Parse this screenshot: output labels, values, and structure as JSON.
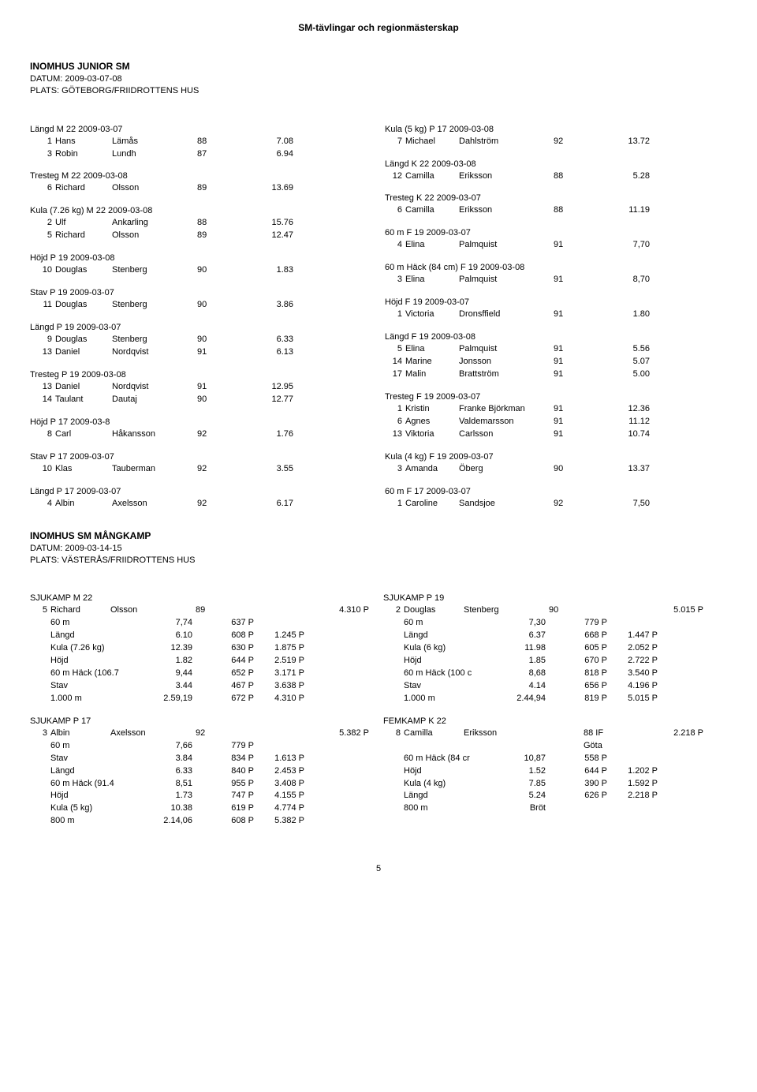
{
  "page_title": "SM-tävlingar och regionmästerskap",
  "section1": {
    "heading": "INOMHUS JUNIOR SM",
    "date_line": "DATUM: 2009-03-07-08",
    "venue_line": "PLATS: GÖTEBORG/FRIIDROTTENS HUS",
    "left": [
      {
        "title": "Längd M 22 2009-03-07",
        "rows": [
          {
            "p": "1",
            "f": "Hans",
            "l": "Lämås",
            "y": "88",
            "m": "7.08"
          },
          {
            "p": "3",
            "f": "Robin",
            "l": "Lundh",
            "y": "87",
            "m": "6.94"
          }
        ]
      },
      {
        "title": "Tresteg M 22 2009-03-08",
        "rows": [
          {
            "p": "6",
            "f": "Richard",
            "l": "Olsson",
            "y": "89",
            "m": "13.69"
          }
        ]
      },
      {
        "title": "Kula (7.26 kg) M 22 2009-03-08",
        "rows": [
          {
            "p": "2",
            "f": "Ulf",
            "l": "Ankarling",
            "y": "88",
            "m": "15.76"
          },
          {
            "p": "5",
            "f": "Richard",
            "l": "Olsson",
            "y": "89",
            "m": "12.47"
          }
        ]
      },
      {
        "title": "Höjd P 19 2009-03-08",
        "rows": [
          {
            "p": "10",
            "f": "Douglas",
            "l": "Stenberg",
            "y": "90",
            "m": "1.83"
          }
        ]
      },
      {
        "title": "Stav P 19 2009-03-07",
        "rows": [
          {
            "p": "11",
            "f": "Douglas",
            "l": "Stenberg",
            "y": "90",
            "m": "3.86"
          }
        ]
      },
      {
        "title": "Längd P 19 2009-03-07",
        "rows": [
          {
            "p": "9",
            "f": "Douglas",
            "l": "Stenberg",
            "y": "90",
            "m": "6.33"
          },
          {
            "p": "13",
            "f": "Daniel",
            "l": "Nordqvist",
            "y": "91",
            "m": "6.13"
          }
        ]
      },
      {
        "title": "Tresteg P 19 2009-03-08",
        "rows": [
          {
            "p": "13",
            "f": "Daniel",
            "l": "Nordqvist",
            "y": "91",
            "m": "12.95"
          },
          {
            "p": "14",
            "f": "Taulant",
            "l": "Dautaj",
            "y": "90",
            "m": "12.77"
          }
        ]
      },
      {
        "title": "Höjd P 17 2009-03-8",
        "rows": [
          {
            "p": "8",
            "f": "Carl",
            "l": "Håkansson",
            "y": "92",
            "m": "1.76"
          }
        ]
      },
      {
        "title": "Stav P 17 2009-03-07",
        "rows": [
          {
            "p": "10",
            "f": "Klas",
            "l": "Tauberman",
            "y": "92",
            "m": "3.55"
          }
        ]
      },
      {
        "title": "Längd P 17 2009-03-07",
        "rows": [
          {
            "p": "4",
            "f": "Albin",
            "l": "Axelsson",
            "y": "92",
            "m": "6.17"
          }
        ]
      }
    ],
    "right": [
      {
        "title": "Kula (5 kg) P 17 2009-03-08",
        "rows": [
          {
            "p": "7",
            "f": "Michael",
            "l": "Dahlström",
            "y": "92",
            "m": "13.72"
          }
        ]
      },
      {
        "title": "Längd K 22 2009-03-08",
        "rows": [
          {
            "p": "12",
            "f": "Camilla",
            "l": "Eriksson",
            "y": "88",
            "m": "5.28"
          }
        ]
      },
      {
        "title": "Tresteg K 22 2009-03-07",
        "rows": [
          {
            "p": "6",
            "f": "Camilla",
            "l": "Eriksson",
            "y": "88",
            "m": "11.19"
          }
        ]
      },
      {
        "title": "60 m F 19 2009-03-07",
        "rows": [
          {
            "p": "4",
            "f": "Elina",
            "l": "Palmquist",
            "y": "91",
            "m": "7,70"
          }
        ]
      },
      {
        "title": "60 m Häck (84 cm) F 19 2009-03-08",
        "rows": [
          {
            "p": "3",
            "f": "Elina",
            "l": "Palmquist",
            "y": "91",
            "m": "8,70"
          }
        ]
      },
      {
        "title": "Höjd F 19 2009-03-07",
        "rows": [
          {
            "p": "1",
            "f": "Victoria",
            "l": "Dronsffield",
            "y": "91",
            "m": "1.80"
          }
        ]
      },
      {
        "title": "Längd F 19 2009-03-08",
        "rows": [
          {
            "p": "5",
            "f": "Elina",
            "l": "Palmquist",
            "y": "91",
            "m": "5.56"
          },
          {
            "p": "14",
            "f": "Marine",
            "l": "Jonsson",
            "y": "91",
            "m": "5.07"
          },
          {
            "p": "17",
            "f": "Malin",
            "l": "Brattström",
            "y": "91",
            "m": "5.00"
          }
        ]
      },
      {
        "title": "Tresteg F 19 2009-03-07",
        "rows": [
          {
            "p": "1",
            "f": "Kristin",
            "l": "Franke Björkman",
            "y": "91",
            "m": "12.36"
          },
          {
            "p": "6",
            "f": "Agnes",
            "l": "Valdemarsson",
            "y": "91",
            "m": "11.12"
          },
          {
            "p": "13",
            "f": "Viktoria",
            "l": "Carlsson",
            "y": "91",
            "m": "10.74"
          }
        ]
      },
      {
        "title": "Kula (4 kg) F 19 2009-03-07",
        "rows": [
          {
            "p": "3",
            "f": "Amanda",
            "l": "Öberg",
            "y": "90",
            "m": "13.37"
          }
        ]
      },
      {
        "title": "60 m F 17 2009-03-07",
        "rows": [
          {
            "p": "1",
            "f": "Caroline",
            "l": "Sandsjoe",
            "y": "92",
            "m": "7,50"
          }
        ]
      }
    ]
  },
  "section2": {
    "heading": "INOMHUS SM MÅNGKAMP",
    "date_line": "DATUM: 2009-03-14-15",
    "venue_line": "PLATS: VÄSTERÅS/FRIIDROTTENS HUS",
    "left": [
      {
        "title": "SJUKAMP M 22",
        "athlete": {
          "p": "5",
          "f": "Richard",
          "l": "Olsson",
          "y": "89",
          "extra": "",
          "total": "4.310 P"
        },
        "rows": [
          {
            "e": "60 m",
            "v": "7,74",
            "pts": "637 P",
            "cum": ""
          },
          {
            "e": "Längd",
            "v": "6.10",
            "pts": "608 P",
            "cum": "1.245 P"
          },
          {
            "e": "Kula (7.26 kg)",
            "v": "12.39",
            "pts": "630 P",
            "cum": "1.875 P"
          },
          {
            "e": "Höjd",
            "v": "1.82",
            "pts": "644 P",
            "cum": "2.519 P"
          },
          {
            "e": "60 m Häck (106.7",
            "v": "9,44",
            "pts": "652 P",
            "cum": "3.171 P"
          },
          {
            "e": "Stav",
            "v": "3.44",
            "pts": "467 P",
            "cum": "3.638 P"
          },
          {
            "e": "1.000 m",
            "v": "2.59,19",
            "pts": "672 P",
            "cum": "4.310 P"
          }
        ]
      },
      {
        "title": "SJUKAMP P 17",
        "athlete": {
          "p": "3",
          "f": "Albin",
          "l": "Axelsson",
          "y": "92",
          "extra": "",
          "total": "5.382 P"
        },
        "rows": [
          {
            "e": "60 m",
            "v": "7,66",
            "pts": "779 P",
            "cum": ""
          },
          {
            "e": "Stav",
            "v": "3.84",
            "pts": "834 P",
            "cum": "1.613 P"
          },
          {
            "e": "Längd",
            "v": "6.33",
            "pts": "840 P",
            "cum": "2.453 P"
          },
          {
            "e": "60 m Häck (91.4",
            "v": "8,51",
            "pts": "955 P",
            "cum": "3.408 P"
          },
          {
            "e": "Höjd",
            "v": "1.73",
            "pts": "747 P",
            "cum": "4.155 P"
          },
          {
            "e": "Kula (5 kg)",
            "v": "10.38",
            "pts": "619 P",
            "cum": "4.774 P"
          },
          {
            "e": "800 m",
            "v": "2.14,06",
            "pts": "608 P",
            "cum": "5.382 P"
          }
        ]
      }
    ],
    "right": [
      {
        "title": "SJUKAMP P 19",
        "athlete": {
          "p": "2",
          "f": "Douglas",
          "l": "Stenberg",
          "y": "90",
          "extra": "",
          "total": "5.015 P"
        },
        "rows": [
          {
            "e": "60 m",
            "v": "7,30",
            "pts": "779 P",
            "cum": ""
          },
          {
            "e": "Längd",
            "v": "6.37",
            "pts": "668 P",
            "cum": "1.447 P"
          },
          {
            "e": "Kula (6 kg)",
            "v": "11.98",
            "pts": "605 P",
            "cum": "2.052 P"
          },
          {
            "e": "Höjd",
            "v": "1.85",
            "pts": "670 P",
            "cum": "2.722 P"
          },
          {
            "e": "60 m Häck (100 c",
            "v": "8,68",
            "pts": "818 P",
            "cum": "3.540 P"
          },
          {
            "e": "Stav",
            "v": "4.14",
            "pts": "656 P",
            "cum": "4.196 P"
          },
          {
            "e": "1.000 m",
            "v": "2.44,94",
            "pts": "819 P",
            "cum": "5.015 P"
          }
        ]
      },
      {
        "title": "FEMKAMP K 22",
        "athlete": {
          "p": "8",
          "f": "Camilla",
          "l": "Eriksson",
          "y": "",
          "extra": "88 IF Göta",
          "total": "2.218 P"
        },
        "rows": [
          {
            "e": "60 m Häck (84 cr",
            "v": "10,87",
            "pts": "558 P",
            "cum": ""
          },
          {
            "e": "Höjd",
            "v": "1.52",
            "pts": "644 P",
            "cum": "1.202 P"
          },
          {
            "e": "Kula (4 kg)",
            "v": "7.85",
            "pts": "390 P",
            "cum": "1.592 P"
          },
          {
            "e": "Längd",
            "v": "5.24",
            "pts": "626 P",
            "cum": "2.218 P"
          },
          {
            "e": "800 m",
            "v": "Bröt",
            "pts": "",
            "cum": ""
          }
        ]
      }
    ]
  },
  "page_number": "5"
}
